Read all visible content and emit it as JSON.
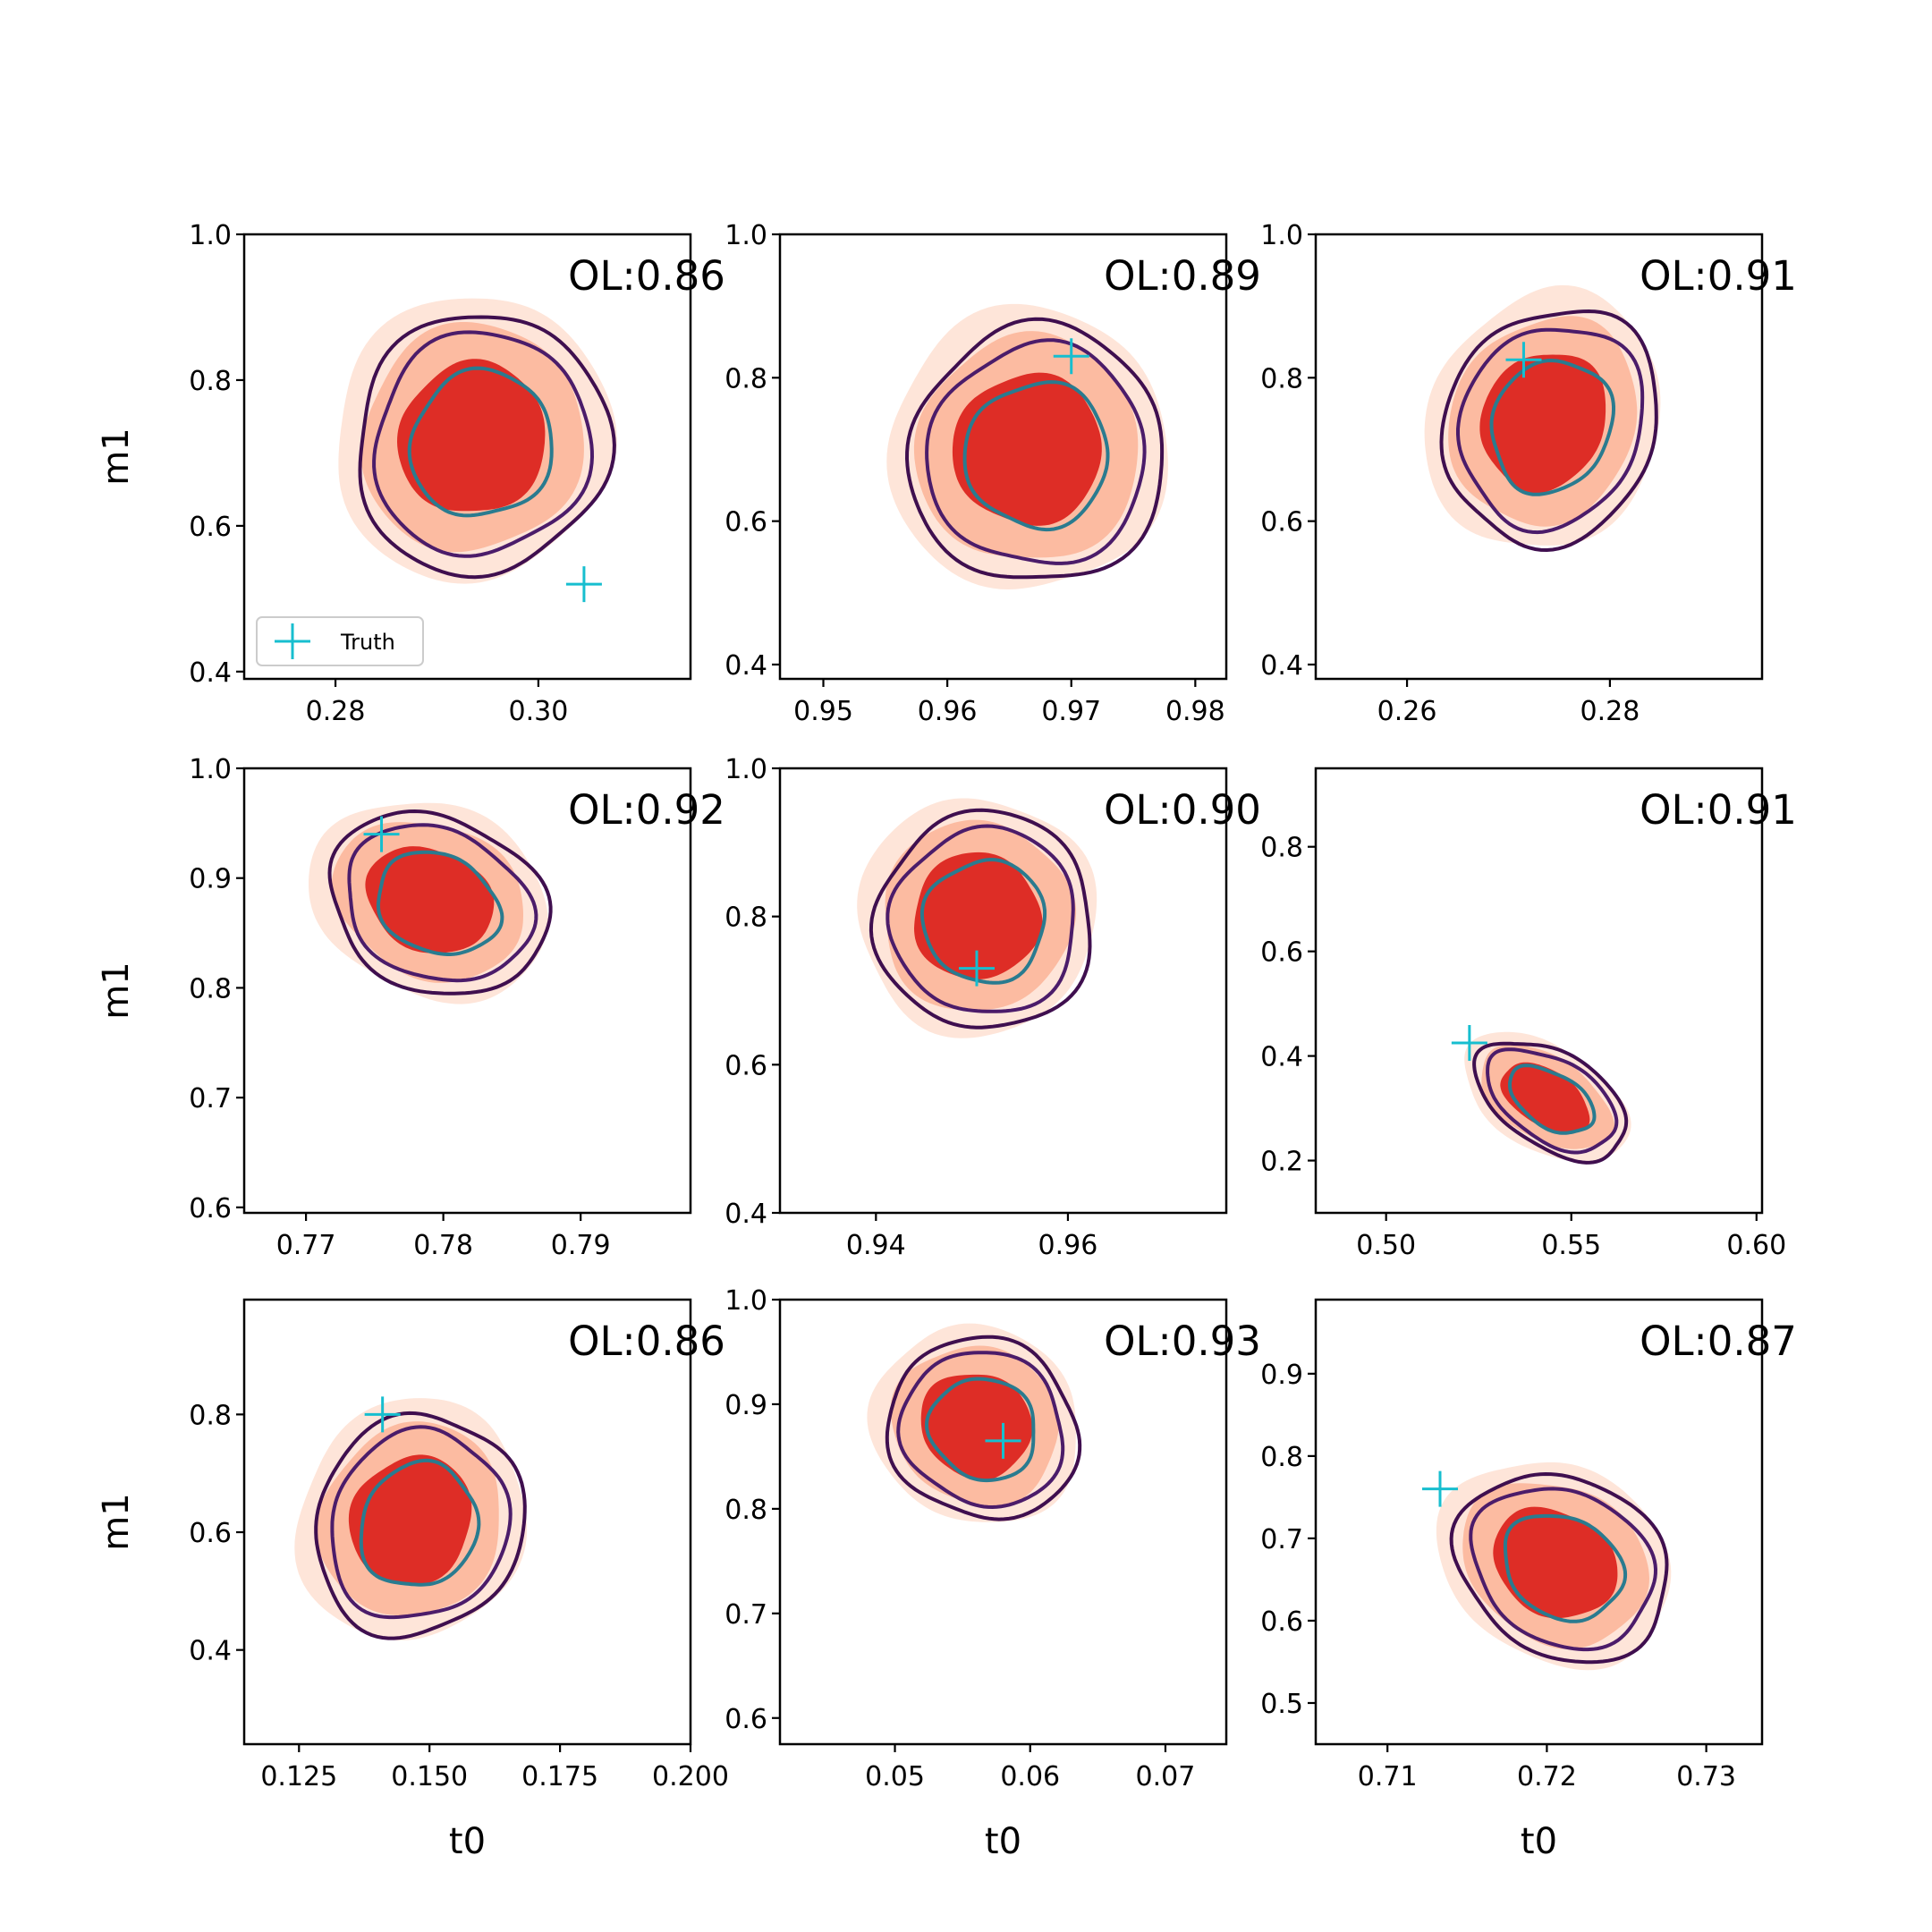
{
  "colors": {
    "truth_marker": "#17becf",
    "fill_3sigma": "#fee5d9",
    "fill_2sigma": "#fcbba1",
    "fill_1sigma": "#de2d26",
    "contour_outer": "#3f0f4f",
    "contour_mid": "#4b1c6a",
    "contour_inner": "#2a7b8f"
  },
  "chart_data": [
    {
      "type": "contour",
      "overlap_text": "OL:0.86",
      "xlabel": "",
      "ylabel": "m1",
      "xlim": [
        0.271,
        0.315
      ],
      "ylim": [
        0.39,
        1.0
      ],
      "xticks": [
        0.28,
        0.3
      ],
      "xticklabels": [
        "0.28",
        "0.30"
      ],
      "yticks": [
        0.4,
        0.6,
        0.8,
        1.0
      ],
      "yticklabels": [
        "0.4",
        "0.6",
        "0.8",
        "1.0"
      ],
      "truth": [
        0.3045,
        0.52
      ],
      "center": [
        0.2935,
        0.72
      ],
      "spread": [
        0.006,
        0.16
      ],
      "tilt": -0.5,
      "legend": {
        "label": "Truth",
        "location": "lower-left"
      }
    },
    {
      "type": "contour",
      "overlap_text": "OL:0.89",
      "xlabel": "",
      "ylabel": "",
      "xlim": [
        0.9465,
        0.9825
      ],
      "ylim": [
        0.38,
        1.0
      ],
      "xticks": [
        0.95,
        0.96,
        0.97,
        0.98
      ],
      "xticklabels": [
        "0.95",
        "0.96",
        "0.97",
        "0.98"
      ],
      "yticks": [
        0.4,
        0.6,
        0.8,
        1.0
      ],
      "yticklabels": [
        "0.4",
        "0.6",
        "0.8",
        "1.0"
      ],
      "truth": [
        0.97,
        0.83
      ],
      "center": [
        0.9665,
        0.7
      ],
      "spread": [
        0.005,
        0.16
      ],
      "tilt": -0.45
    },
    {
      "type": "contour",
      "overlap_text": "OL:0.91",
      "xlabel": "",
      "ylabel": "",
      "xlim": [
        0.251,
        0.295
      ],
      "ylim": [
        0.38,
        1.0
      ],
      "xticks": [
        0.26,
        0.28
      ],
      "xticklabels": [
        "0.26",
        "0.28"
      ],
      "yticks": [
        0.4,
        0.6,
        0.8,
        1.0
      ],
      "yticklabels": [
        "0.4",
        "0.6",
        "0.8",
        "1.0"
      ],
      "truth": [
        0.2715,
        0.825
      ],
      "center": [
        0.2735,
        0.74
      ],
      "spread": [
        0.005,
        0.15
      ],
      "tilt": -0.45
    },
    {
      "type": "contour",
      "overlap_text": "OL:0.92",
      "xlabel": "",
      "ylabel": "m1",
      "xlim": [
        0.7655,
        0.798
      ],
      "ylim": [
        0.595,
        1.0
      ],
      "xticks": [
        0.77,
        0.78,
        0.79
      ],
      "xticklabels": [
        "0.77",
        "0.78",
        "0.79"
      ],
      "yticks": [
        0.6,
        0.7,
        0.8,
        0.9,
        1.0
      ],
      "yticklabels": [
        "0.6",
        "0.7",
        "0.8",
        "0.9",
        "1.0"
      ],
      "truth": [
        0.7755,
        0.94
      ],
      "center": [
        0.779,
        0.88
      ],
      "spread": [
        0.004,
        0.07
      ],
      "tilt": -0.4
    },
    {
      "type": "contour",
      "overlap_text": "OL:0.90",
      "xlabel": "",
      "ylabel": "",
      "xlim": [
        0.93,
        0.9765
      ],
      "ylim": [
        0.4,
        1.0
      ],
      "xticks": [
        0.94,
        0.96
      ],
      "xticklabels": [
        "0.94",
        "0.96"
      ],
      "yticks": [
        0.4,
        0.6,
        0.8,
        1.0
      ],
      "yticklabels": [
        "0.4",
        "0.6",
        "0.8",
        "1.0"
      ],
      "truth": [
        0.9505,
        0.73
      ],
      "center": [
        0.9505,
        0.8
      ],
      "spread": [
        0.0055,
        0.13
      ],
      "tilt": -0.55
    },
    {
      "type": "contour",
      "overlap_text": "OL:0.91",
      "xlabel": "",
      "ylabel": "",
      "xlim": [
        0.481,
        0.6015
      ],
      "ylim": [
        0.1,
        0.95
      ],
      "xticks": [
        0.5,
        0.55,
        0.6
      ],
      "xticklabels": [
        "0.50",
        "0.55",
        "0.60"
      ],
      "yticks": [
        0.2,
        0.4,
        0.6,
        0.8
      ],
      "yticklabels": [
        "0.2",
        "0.4",
        "0.6",
        "0.8"
      ],
      "truth": [
        0.5225,
        0.425
      ],
      "center": [
        0.543,
        0.32
      ],
      "spread": [
        0.011,
        0.08
      ],
      "tilt": -0.55
    },
    {
      "type": "contour",
      "overlap_text": "OL:0.86",
      "xlabel": "t0",
      "ylabel": "m1",
      "xlim": [
        0.1145,
        0.2
      ],
      "ylim": [
        0.24,
        0.995
      ],
      "xticks": [
        0.125,
        0.15,
        0.175,
        0.2
      ],
      "xticklabels": [
        "0.125",
        "0.150",
        "0.175",
        "0.200"
      ],
      "yticks": [
        0.4,
        0.6,
        0.8
      ],
      "yticklabels": [
        "0.4",
        "0.6",
        "0.8"
      ],
      "truth": [
        0.141,
        0.8
      ],
      "center": [
        0.1465,
        0.62
      ],
      "spread": [
        0.0095,
        0.17
      ],
      "tilt": -0.5
    },
    {
      "type": "contour",
      "overlap_text": "OL:0.93",
      "xlabel": "t0",
      "ylabel": "",
      "xlim": [
        0.0415,
        0.0745
      ],
      "ylim": [
        0.575,
        1.0
      ],
      "xticks": [
        0.05,
        0.06,
        0.07
      ],
      "xticklabels": [
        "0.05",
        "0.06",
        "0.07"
      ],
      "yticks": [
        0.6,
        0.7,
        0.8,
        0.9,
        1.0
      ],
      "yticklabels": [
        "0.6",
        "0.7",
        "0.8",
        "0.9",
        "1.0"
      ],
      "truth": [
        0.058,
        0.865
      ],
      "center": [
        0.056,
        0.88
      ],
      "spread": [
        0.0035,
        0.075
      ],
      "tilt": -0.5
    },
    {
      "type": "contour",
      "overlap_text": "OL:0.87",
      "xlabel": "t0",
      "ylabel": "",
      "xlim": [
        0.7055,
        0.7335
      ],
      "ylim": [
        0.45,
        0.99
      ],
      "xticks": [
        0.71,
        0.72,
        0.73
      ],
      "xticklabels": [
        "0.71",
        "0.72",
        "0.73"
      ],
      "yticks": [
        0.5,
        0.6,
        0.7,
        0.8,
        0.9
      ],
      "yticklabels": [
        "0.5",
        "0.6",
        "0.7",
        "0.8",
        "0.9"
      ],
      "truth": [
        0.7133,
        0.76
      ],
      "center": [
        0.7205,
        0.67
      ],
      "spread": [
        0.0034,
        0.095
      ],
      "tilt": -0.5
    }
  ]
}
